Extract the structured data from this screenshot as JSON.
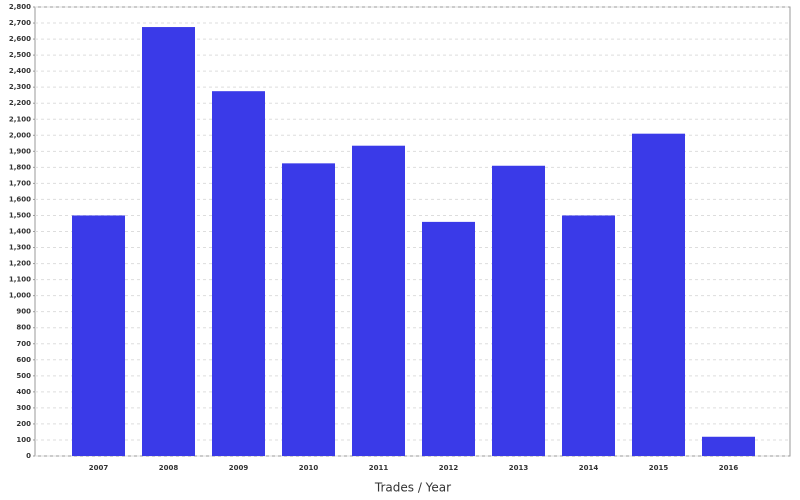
{
  "chart_data": {
    "type": "bar",
    "x_label": "Trades / Year",
    "categories": [
      "2007",
      "2008",
      "2009",
      "2010",
      "2011",
      "2012",
      "2013",
      "2014",
      "2015",
      "2016"
    ],
    "values": [
      1500,
      2675,
      2275,
      1825,
      1935,
      1460,
      1810,
      1500,
      2010,
      120
    ],
    "color": "#3a3ae8",
    "ylim": [
      0,
      2800
    ],
    "yticks": [
      0,
      100,
      200,
      300,
      400,
      500,
      600,
      700,
      800,
      900,
      {
        "value": 1000,
        "label": "1,000"
      },
      {
        "value": 1100,
        "label": "1,100"
      },
      {
        "value": 1200,
        "label": "1,200"
      },
      {
        "value": 1300,
        "label": "1,300"
      },
      {
        "value": 1400,
        "label": "1,400"
      },
      {
        "value": 1500,
        "label": "1,500"
      },
      {
        "value": 1600,
        "label": "1,600"
      },
      {
        "value": 1700,
        "label": "1,700"
      },
      {
        "value": 1800,
        "label": "1,800"
      },
      {
        "value": 1900,
        "label": "1,900"
      },
      {
        "value": 2000,
        "label": "2,000"
      },
      {
        "value": 2100,
        "label": "2,100"
      },
      {
        "value": 2200,
        "label": "2,200"
      },
      {
        "value": 2300,
        "label": "2,300"
      },
      {
        "value": 2400,
        "label": "2,400"
      },
      {
        "value": 2500,
        "label": "2,500"
      },
      {
        "value": 2600,
        "label": "2,600"
      },
      {
        "value": 2700,
        "label": "2,700"
      },
      {
        "value": 2800,
        "label": "2,800"
      }
    ],
    "grid": true
  }
}
